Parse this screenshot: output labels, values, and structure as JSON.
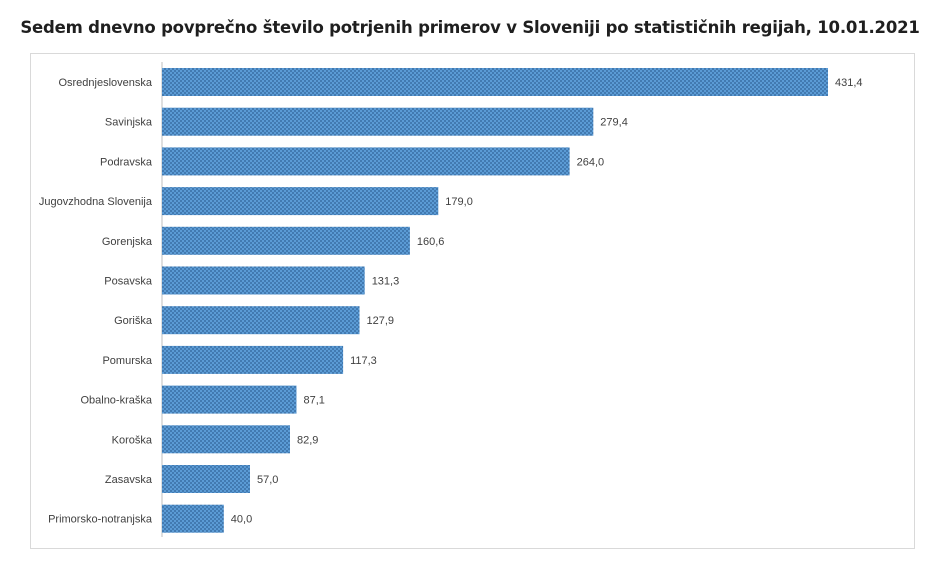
{
  "chart_data": {
    "type": "bar",
    "orientation": "horizontal",
    "title": "Sedem dnevno povprečno število potrjenih primerov v Sloveniji po statističnih regijah, 10.01.2021",
    "categories": [
      "Osrednjeslovenska",
      "Savinjska",
      "Podravska",
      "Jugovzhodna Slovenija",
      "Gorenjska",
      "Posavska",
      "Goriška",
      "Pomurska",
      "Obalno-kraška",
      "Koroška",
      "Zasavska",
      "Primorsko-notranjska"
    ],
    "values": [
      431.4,
      279.4,
      264.0,
      179.0,
      160.6,
      131.3,
      127.9,
      117.3,
      87.1,
      82.9,
      57.0,
      40.0
    ],
    "value_labels": [
      "431,4",
      "279,4",
      "264,0",
      "179,0",
      "160,6",
      "131,3",
      "127,9",
      "117,3",
      "87,1",
      "82,9",
      "57,0",
      "40,0"
    ],
    "xlim": [
      0,
      431.4
    ],
    "grid": false,
    "legend": "none",
    "bar_color": "#5b9bd5",
    "bar_pattern_color": "#2e5f94"
  }
}
